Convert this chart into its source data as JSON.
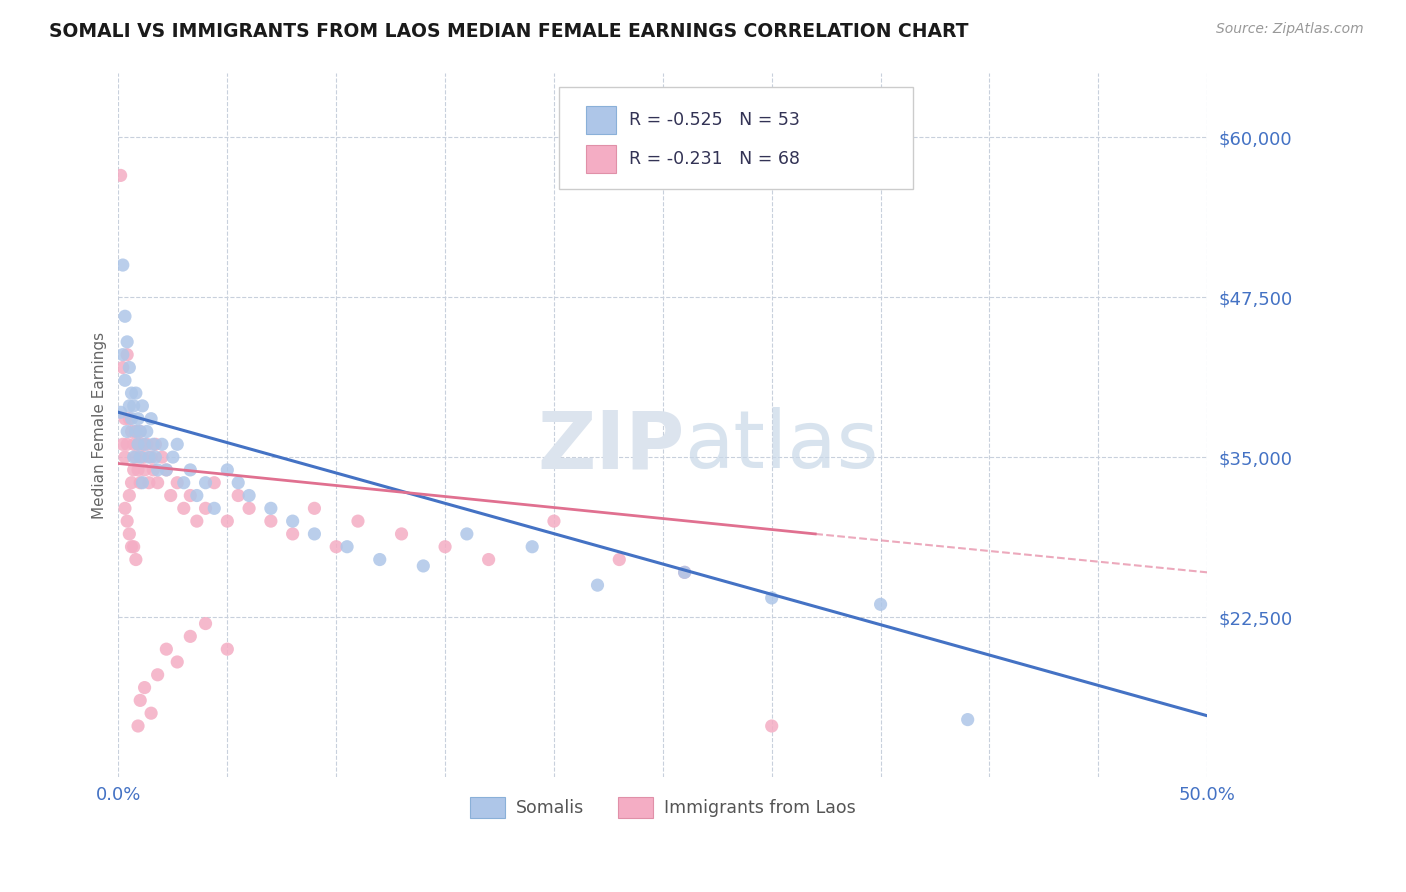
{
  "title": "SOMALI VS IMMIGRANTS FROM LAOS MEDIAN FEMALE EARNINGS CORRELATION CHART",
  "source": "Source: ZipAtlas.com",
  "ylabel": "Median Female Earnings",
  "x_min": 0.0,
  "x_max": 0.5,
  "y_min": 10000,
  "y_max": 65000,
  "yticks": [
    22500,
    35000,
    47500,
    60000
  ],
  "ytick_labels": [
    "$22,500",
    "$35,000",
    "$47,500",
    "$60,000"
  ],
  "xticks": [
    0.0,
    0.05,
    0.1,
    0.15,
    0.2,
    0.25,
    0.3,
    0.35,
    0.4,
    0.45,
    0.5
  ],
  "r_somali": -0.525,
  "n_somali": 53,
  "r_laos": -0.231,
  "n_laos": 68,
  "color_somali_fill": "#aec6e8",
  "color_laos_fill": "#f4adc4",
  "color_line_somali": "#4472c4",
  "color_line_laos": "#e07090",
  "color_axis_text": "#4472c4",
  "color_grid": "#c8d0dc",
  "watermark_color": "#dce4ee",
  "background_color": "#ffffff",
  "legend_text_color": "#333355",
  "somali_x": [
    0.001,
    0.002,
    0.002,
    0.003,
    0.003,
    0.004,
    0.004,
    0.005,
    0.005,
    0.006,
    0.006,
    0.007,
    0.007,
    0.008,
    0.008,
    0.009,
    0.009,
    0.01,
    0.01,
    0.011,
    0.011,
    0.012,
    0.013,
    0.014,
    0.015,
    0.016,
    0.017,
    0.018,
    0.02,
    0.022,
    0.025,
    0.027,
    0.03,
    0.033,
    0.036,
    0.04,
    0.044,
    0.05,
    0.055,
    0.06,
    0.07,
    0.08,
    0.09,
    0.105,
    0.12,
    0.14,
    0.16,
    0.19,
    0.22,
    0.26,
    0.3,
    0.35,
    0.39
  ],
  "somali_y": [
    38500,
    50000,
    43000,
    46000,
    41000,
    44000,
    37000,
    42000,
    39000,
    38000,
    40000,
    39000,
    35000,
    37000,
    40000,
    38000,
    36000,
    37000,
    35000,
    39000,
    33000,
    36000,
    37000,
    35000,
    38000,
    36000,
    35000,
    34000,
    36000,
    34000,
    35000,
    36000,
    33000,
    34000,
    32000,
    33000,
    31000,
    34000,
    33000,
    32000,
    31000,
    30000,
    29000,
    28000,
    27000,
    26500,
    29000,
    28000,
    25000,
    26000,
    24000,
    23500,
    14500
  ],
  "laos_x": [
    0.001,
    0.002,
    0.002,
    0.003,
    0.003,
    0.004,
    0.004,
    0.005,
    0.005,
    0.006,
    0.006,
    0.007,
    0.007,
    0.008,
    0.008,
    0.009,
    0.009,
    0.01,
    0.01,
    0.011,
    0.011,
    0.012,
    0.013,
    0.014,
    0.015,
    0.016,
    0.017,
    0.018,
    0.02,
    0.022,
    0.024,
    0.027,
    0.03,
    0.033,
    0.036,
    0.04,
    0.044,
    0.05,
    0.055,
    0.06,
    0.07,
    0.08,
    0.09,
    0.1,
    0.11,
    0.13,
    0.15,
    0.17,
    0.2,
    0.23,
    0.26,
    0.3,
    0.003,
    0.004,
    0.005,
    0.006,
    0.007,
    0.008,
    0.009,
    0.01,
    0.012,
    0.015,
    0.018,
    0.022,
    0.027,
    0.033,
    0.04,
    0.05
  ],
  "laos_y": [
    57000,
    42000,
    36000,
    38000,
    35000,
    43000,
    36000,
    38000,
    32000,
    37000,
    33000,
    36000,
    34000,
    37000,
    35000,
    36000,
    34000,
    37000,
    33000,
    35000,
    36000,
    34000,
    36000,
    33000,
    35000,
    34000,
    36000,
    33000,
    35000,
    34000,
    32000,
    33000,
    31000,
    32000,
    30000,
    31000,
    33000,
    30000,
    32000,
    31000,
    30000,
    29000,
    31000,
    28000,
    30000,
    29000,
    28000,
    27000,
    30000,
    27000,
    26000,
    14000,
    31000,
    30000,
    29000,
    28000,
    28000,
    27000,
    14000,
    16000,
    17000,
    15000,
    18000,
    20000,
    19000,
    21000,
    22000,
    20000
  ]
}
